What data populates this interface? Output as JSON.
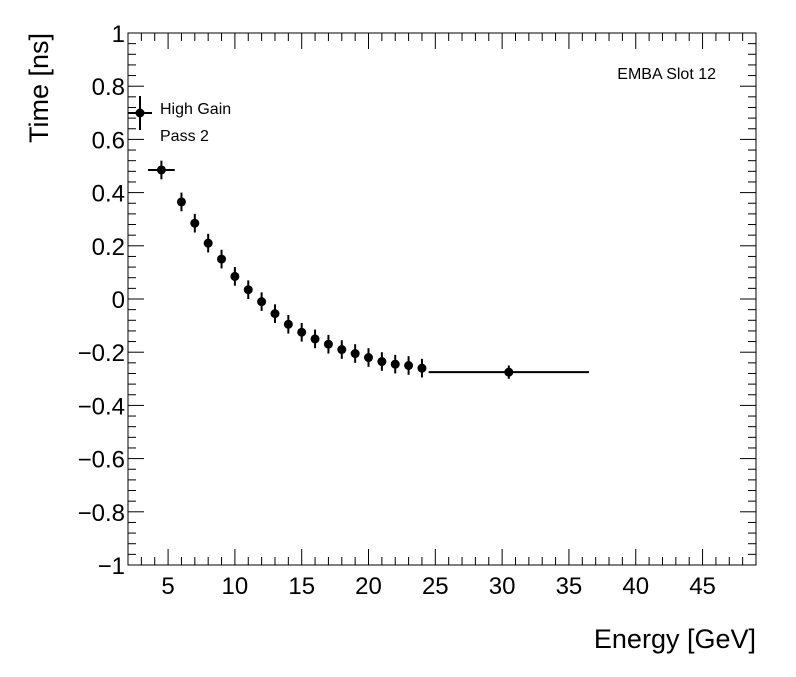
{
  "chart_data": {
    "type": "scatter",
    "title": "",
    "xlabel": "Energy [GeV]",
    "ylabel": "Time [ns]",
    "xlim": [
      2,
      49
    ],
    "ylim": [
      -1,
      1
    ],
    "x_ticks": [
      5,
      10,
      15,
      20,
      25,
      30,
      35,
      40,
      45
    ],
    "x_tick_labels": [
      "5",
      "10",
      "15",
      "20",
      "25",
      "30",
      "35",
      "40",
      "45"
    ],
    "y_ticks": [
      1,
      0.8,
      0.6,
      0.4,
      0.2,
      0,
      -0.2,
      -0.4,
      -0.6,
      -0.8,
      -1
    ],
    "y_tick_labels": [
      "1",
      "0.8",
      "0.6",
      "0.4",
      "0.2",
      "0",
      "−0.2",
      "−0.4",
      "−0.6",
      "−0.8",
      "−1"
    ],
    "grid": false,
    "legend": {
      "position": "top-left",
      "entries": [
        "High Gain",
        "Pass 2"
      ]
    },
    "annotations": [
      "EMBA Slot 12"
    ],
    "series": [
      {
        "name": "High Gain",
        "color": "#000000",
        "marker": "circle",
        "points": [
          {
            "x": 4.5,
            "y": 0.485,
            "xerr": 1.0,
            "yerr": 0.035
          },
          {
            "x": 6.0,
            "y": 0.365,
            "xerr": 0.0,
            "yerr": 0.035
          },
          {
            "x": 7.0,
            "y": 0.285,
            "xerr": 0.0,
            "yerr": 0.035
          },
          {
            "x": 8.0,
            "y": 0.21,
            "xerr": 0.0,
            "yerr": 0.035
          },
          {
            "x": 9.0,
            "y": 0.15,
            "xerr": 0.0,
            "yerr": 0.035
          },
          {
            "x": 10.0,
            "y": 0.085,
            "xerr": 0.0,
            "yerr": 0.035
          },
          {
            "x": 11.0,
            "y": 0.035,
            "xerr": 0.0,
            "yerr": 0.035
          },
          {
            "x": 12.0,
            "y": -0.01,
            "xerr": 0.0,
            "yerr": 0.035
          },
          {
            "x": 13.0,
            "y": -0.055,
            "xerr": 0.0,
            "yerr": 0.035
          },
          {
            "x": 14.0,
            "y": -0.095,
            "xerr": 0.0,
            "yerr": 0.035
          },
          {
            "x": 15.0,
            "y": -0.125,
            "xerr": 0.0,
            "yerr": 0.035
          },
          {
            "x": 16.0,
            "y": -0.15,
            "xerr": 0.0,
            "yerr": 0.035
          },
          {
            "x": 17.0,
            "y": -0.17,
            "xerr": 0.0,
            "yerr": 0.035
          },
          {
            "x": 18.0,
            "y": -0.19,
            "xerr": 0.0,
            "yerr": 0.035
          },
          {
            "x": 19.0,
            "y": -0.205,
            "xerr": 0.0,
            "yerr": 0.035
          },
          {
            "x": 20.0,
            "y": -0.22,
            "xerr": 0.0,
            "yerr": 0.035
          },
          {
            "x": 21.0,
            "y": -0.235,
            "xerr": 0.0,
            "yerr": 0.035
          },
          {
            "x": 22.0,
            "y": -0.245,
            "xerr": 0.0,
            "yerr": 0.035
          },
          {
            "x": 23.0,
            "y": -0.25,
            "xerr": 0.0,
            "yerr": 0.035
          },
          {
            "x": 24.0,
            "y": -0.26,
            "xerr": 0.0,
            "yerr": 0.035
          },
          {
            "x": 30.5,
            "y": -0.275,
            "xerr": 6.0,
            "yerr": 0.025
          }
        ]
      }
    ]
  }
}
